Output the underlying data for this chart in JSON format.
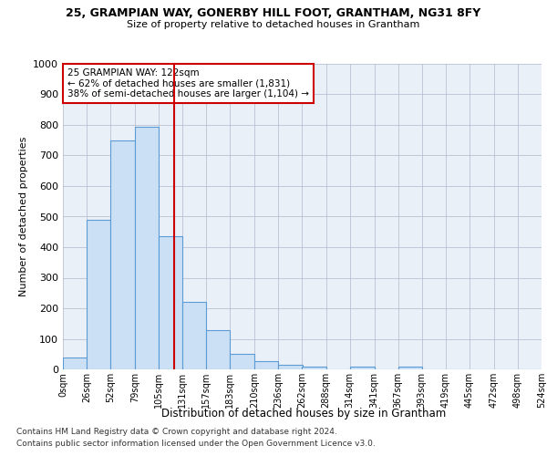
{
  "title": "25, GRAMPIAN WAY, GONERBY HILL FOOT, GRANTHAM, NG31 8FY",
  "subtitle": "Size of property relative to detached houses in Grantham",
  "xlabel": "Distribution of detached houses by size in Grantham",
  "ylabel": "Number of detached properties",
  "bar_color": "#cce0f5",
  "bar_edge_color": "#5b9bd5",
  "grid_color": "#b0b8cc",
  "bin_edges": [
    0,
    26,
    52,
    79,
    105,
    131,
    157,
    183,
    210,
    236,
    262,
    288,
    314,
    341,
    367,
    393,
    419,
    445,
    472,
    498,
    524
  ],
  "bin_labels": [
    "0sqm",
    "26sqm",
    "52sqm",
    "79sqm",
    "105sqm",
    "131sqm",
    "157sqm",
    "183sqm",
    "210sqm",
    "236sqm",
    "262sqm",
    "288sqm",
    "314sqm",
    "341sqm",
    "367sqm",
    "393sqm",
    "419sqm",
    "445sqm",
    "472sqm",
    "498sqm",
    "524sqm"
  ],
  "bar_heights": [
    40,
    490,
    750,
    795,
    435,
    220,
    127,
    50,
    27,
    15,
    10,
    0,
    8,
    0,
    8,
    0,
    0,
    0,
    0,
    0
  ],
  "property_size": 122,
  "vline_color": "#cc0000",
  "annotation_text": "25 GRAMPIAN WAY: 122sqm\n← 62% of detached houses are smaller (1,831)\n38% of semi-detached houses are larger (1,104) →",
  "annotation_box_color": "#ffffff",
  "annotation_border_color": "#cc0000",
  "ylim": [
    0,
    1000
  ],
  "yticks": [
    0,
    100,
    200,
    300,
    400,
    500,
    600,
    700,
    800,
    900,
    1000
  ],
  "footnote_line1": "Contains HM Land Registry data © Crown copyright and database right 2024.",
  "footnote_line2": "Contains public sector information licensed under the Open Government Licence v3.0.",
  "bg_color": "#eaf0f8"
}
